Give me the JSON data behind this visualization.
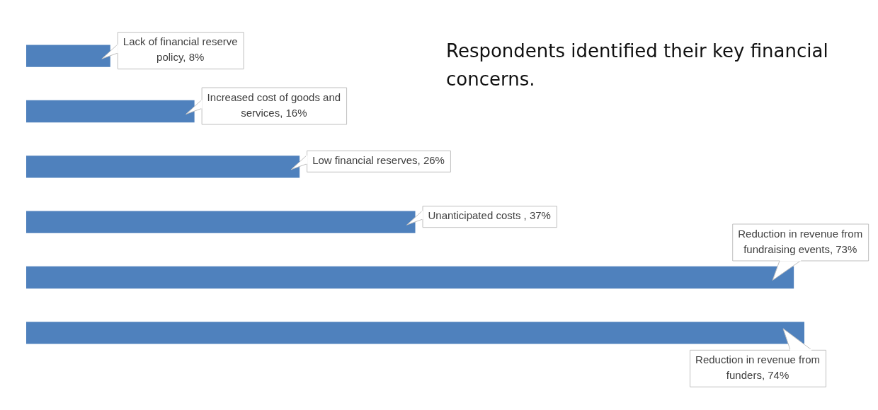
{
  "chart_data": {
    "type": "bar",
    "orientation": "horizontal",
    "title": "Respondents identified their key financial concerns.",
    "categories": [
      null,
      null,
      null,
      null,
      null,
      null
    ],
    "values": [
      8,
      16,
      26,
      37,
      73,
      74
    ],
    "value_labels": [
      "Lack of financial reserve policy, 8%",
      "Increased cost of goods and services, 16%",
      "Low financial reserves, 26%",
      "Unanticipated costs , 37%",
      "Reduction in revenue from fundraising events, 73%",
      "Reduction in revenue from funders, 74%"
    ],
    "color": "#4f81bd",
    "legend": false,
    "tick_labels": false
  }
}
